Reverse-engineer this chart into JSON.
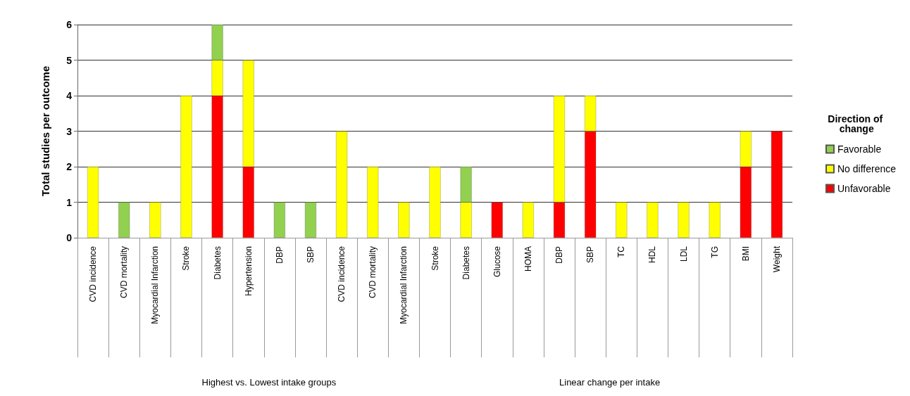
{
  "chart_data": {
    "type": "bar",
    "stacked": true,
    "ylabel": "Total studies per outcome",
    "legend_title": "Direction of change",
    "legend": "right",
    "grid": "y",
    "categories": [
      "CVD incidence",
      "CVD mortality",
      "Myocardial Infarction",
      "Stroke",
      "Diabetes",
      "Hypertension",
      "DBP",
      "SBP",
      "CVD incidence",
      "CVD mortality",
      "Myocardial Infarction",
      "Stroke",
      "Diabetes",
      "Glucose",
      "HOMA",
      "DBP",
      "SBP",
      "TC",
      "HDL",
      "LDL",
      "TG",
      "BMI",
      "Weight"
    ],
    "ylim": [
      0,
      6
    ],
    "yticks": [
      0,
      1,
      2,
      3,
      4,
      5,
      6
    ],
    "series": [
      {
        "name": "Unfavorable",
        "color": "#ff0000",
        "values": [
          null,
          null,
          null,
          null,
          4,
          2,
          null,
          null,
          null,
          null,
          null,
          null,
          null,
          1,
          null,
          1,
          3,
          null,
          null,
          null,
          null,
          2,
          3
        ]
      },
      {
        "name": "No difference",
        "color": "#ffff00",
        "values": [
          2,
          null,
          1,
          4,
          1,
          3,
          null,
          null,
          3,
          2,
          1,
          2,
          1,
          null,
          1,
          3,
          1,
          1,
          1,
          1,
          1,
          1,
          null
        ]
      },
      {
        "name": "Favorable",
        "color": "#92d050",
        "values": [
          null,
          1,
          null,
          null,
          1,
          null,
          1,
          1,
          null,
          null,
          null,
          null,
          1,
          null,
          null,
          null,
          null,
          null,
          null,
          null,
          null,
          null,
          null
        ]
      }
    ],
    "annotations": [
      "Highest vs. Lowest intake groups",
      "Linear change per intake"
    ]
  }
}
